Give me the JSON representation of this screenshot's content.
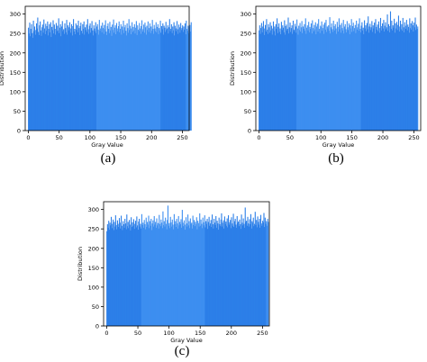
{
  "panels": [
    {
      "caption": "(a)",
      "chart_data": {
        "type": "bar",
        "xlabel": "Gray Value",
        "ylabel": "Distribution",
        "xlim": [
          -5,
          261
        ],
        "ylim": [
          0,
          320
        ],
        "xticks": [
          0,
          50,
          100,
          150,
          200,
          250
        ],
        "yticks": [
          0,
          50,
          100,
          150,
          200,
          250,
          300
        ],
        "bar_color": "#3d8ef0",
        "band_color": "#2c7fe8",
        "grid": false,
        "values": [
          265,
          250,
          278,
          243,
          262,
          274,
          251,
          239,
          283,
          256,
          268,
          247,
          259,
          276,
          263,
          291,
          254,
          246,
          271,
          281,
          258,
          244,
          266,
          273,
          252,
          286,
          263,
          248,
          275,
          257,
          269,
          281,
          245,
          262,
          274,
          253,
          279,
          241,
          267,
          259,
          284,
          250,
          273,
          262,
          247,
          277,
          256,
          270,
          258,
          289,
          251,
          265,
          274,
          243,
          268,
          282,
          256,
          261,
          249,
          276,
          264,
          253,
          285,
          247,
          271,
          258,
          266,
          279,
          252,
          263,
          274,
          245,
          269,
          287,
          255,
          262,
          248,
          276,
          259,
          271,
          253,
          283,
          264,
          246,
          269,
          278,
          257,
          250,
          274,
          262,
          281,
          247,
          266,
          259,
          273,
          254,
          287,
          261,
          249,
          270,
          276,
          252,
          264,
          282,
          258,
          245,
          271,
          263,
          256,
          279,
          251,
          268,
          274,
          260,
          247,
          285,
          257,
          263,
          270,
          253,
          278,
          264,
          249,
          272,
          261,
          284,
          255,
          246,
          269,
          276,
          262,
          251,
          280,
          258,
          267,
          244,
          273,
          259,
          286,
          252,
          265,
          271,
          248,
          277,
          263,
          256,
          269,
          281,
          253,
          262,
          274,
          247,
          268,
          259,
          283,
          251,
          266,
          272,
          257,
          245,
          276,
          264,
          252,
          287,
          259,
          270,
          248,
          263,
          279,
          254,
          267,
          258,
          274,
          250,
          265,
          282,
          246,
          271,
          260,
          256,
          277,
          263,
          249,
          269,
          284,
          255,
          261,
          273,
          252,
          278,
          266,
          247,
          270,
          259,
          281,
          254,
          264,
          276,
          251,
          268,
          257,
          285,
          262,
          249,
          272,
          263,
          256,
          279,
          253,
          267,
          274,
          248,
          264,
          258,
          283,
          252,
          269,
          261,
          276,
          247,
          270,
          265,
          254,
          280,
          259,
          263,
          271,
          250,
          266,
          287,
          256,
          262,
          274,
          251,
          268,
          258,
          279,
          245,
          270,
          263,
          256,
          282,
          261,
          249,
          273,
          266,
          252,
          277,
          259,
          264,
          271,
          254,
          268,
          260,
          276,
          248,
          283,
          262,
          257,
          270,
          251,
          266,
          272,
          255,
          279
        ],
        "bands": [
          [
            0,
            110
          ],
          [
            215,
            255
          ]
        ]
      }
    },
    {
      "caption": "(b)",
      "chart_data": {
        "type": "bar",
        "xlabel": "Gray Value",
        "ylabel": "Distribution",
        "xlim": [
          -5,
          261
        ],
        "ylim": [
          0,
          320
        ],
        "xticks": [
          0,
          50,
          100,
          150,
          200,
          250
        ],
        "yticks": [
          0,
          50,
          100,
          150,
          200,
          250,
          300
        ],
        "bar_color": "#3d8ef0",
        "band_color": "#2c7fe8",
        "grid": false,
        "values": [
          258,
          271,
          249,
          264,
          277,
          253,
          268,
          282,
          246,
          263,
          272,
          255,
          287,
          260,
          249,
          274,
          266,
          252,
          279,
          258,
          270,
          247,
          263,
          281,
          256,
          268,
          245,
          274,
          262,
          289,
          251,
          267,
          276,
          254,
          263,
          248,
          280,
          259,
          271,
          265,
          253,
          284,
          247,
          269,
          273,
          258,
          262,
          291,
          250,
          266,
          278,
          254,
          264,
          271,
          249,
          283,
          260,
          256,
          275,
          268,
          252,
          286,
          263,
          247,
          270,
          259,
          277,
          255,
          266,
          282,
          251,
          268,
          262,
          274,
          257,
          289,
          249,
          265,
          271,
          258,
          280,
          253,
          267,
          262,
          276,
          250,
          284,
          264,
          256,
          272,
          261,
          279,
          248,
          268,
          275,
          255,
          287,
          262,
          251,
          270,
          266,
          281,
          257,
          264,
          273,
          249,
          278,
          260,
          285,
          254,
          268,
          263,
          271,
          257,
          292,
          250,
          266,
          276,
          261,
          254,
          283,
          269,
          258,
          274,
          263,
          249,
          280,
          267,
          255,
          289,
          261,
          272,
          252,
          277,
          264,
          258,
          285,
          250,
          268,
          274,
          261,
          253,
          282,
          266,
          259,
          276,
          248,
          271,
          263,
          287,
          254,
          269,
          278,
          256,
          264,
          272,
          251,
          283,
          260,
          266,
          275,
          257,
          289,
          262,
          253,
          270,
          279,
          258,
          265,
          248,
          284,
          263,
          271,
          256,
          277,
          261,
          294,
          252,
          268,
          275,
          259,
          266,
          282,
          254,
          271,
          263,
          278,
          250,
          287,
          267,
          260,
          273,
          256,
          281,
          264,
          252,
          290,
          269,
          258,
          276,
          263,
          285,
          255,
          270,
          279,
          261,
          266,
          299,
          257,
          274,
          269,
          253,
          307,
          262,
          283,
          258,
          271,
          265,
          288,
          252,
          276,
          263,
          280,
          259,
          272,
          296,
          255,
          268,
          283,
          261,
          274,
          257,
          290,
          266,
          253,
          279,
          270,
          262,
          285,
          258,
          273,
          267,
          252,
          289,
          264,
          276,
          260,
          282,
          271,
          255,
          278,
          266,
          291,
          259,
          273,
          262,
          268
        ],
        "bands": [
          [
            0,
            60
          ],
          [
            165,
            255
          ]
        ]
      }
    },
    {
      "caption": "(c)",
      "chart_data": {
        "type": "bar",
        "xlabel": "Gray Value",
        "ylabel": "Distribution",
        "xlim": [
          -5,
          261
        ],
        "ylim": [
          0,
          320
        ],
        "xticks": [
          0,
          50,
          100,
          150,
          200,
          250
        ],
        "yticks": [
          0,
          50,
          100,
          150,
          200,
          250,
          300
        ],
        "bar_color": "#3d8ef0",
        "band_color": "#2c7fe8",
        "grid": false,
        "values": [
          244,
          262,
          253,
          271,
          248,
          266,
          259,
          281,
          252,
          263,
          274,
          247,
          268,
          256,
          285,
          260,
          249,
          272,
          263,
          255,
          278,
          251,
          266,
          284,
          258,
          247,
          270,
          262,
          253,
          276,
          264,
          249,
          287,
          257,
          268,
          252,
          273,
          261,
          246,
          280,
          255,
          267,
          258,
          275,
          250,
          263,
          271,
          254,
          282,
          259,
          248,
          269,
          276,
          256,
          263,
          251,
          288,
          260,
          266,
          253,
          273,
          262,
          249,
          279,
          255,
          268,
          261,
          284,
          252,
          270,
          258,
          276,
          247,
          264,
          272,
          256,
          283,
          261,
          268,
          253,
          277,
          259,
          265,
          251,
          286,
          263,
          257,
          274,
          266,
          252,
          295,
          260,
          270,
          256,
          279,
          263,
          249,
          273,
          310,
          258,
          265,
          252,
          281,
          267,
          256,
          274,
          261,
          249,
          288,
          262,
          270,
          255,
          276,
          264,
          251,
          283,
          259,
          268,
          262,
          275,
          253,
          299,
          266,
          257,
          272,
          261,
          248,
          280,
          264,
          256,
          287,
          259,
          270,
          252,
          277,
          263,
          266,
          251,
          284,
          260,
          273,
          257,
          268,
          262,
          280,
          249,
          271,
          265,
          256,
          290,
          258,
          274,
          263,
          252,
          279,
          267,
          259,
          285,
          254,
          270,
          263,
          276,
          250,
          268,
          281,
          258,
          264,
          273,
          255,
          287,
          262,
          251,
          276,
          266,
          260,
          283,
          253,
          271,
          264,
          248,
          279,
          262,
          257,
          274,
          290,
          256,
          266,
          272,
          251,
          282,
          263,
          269,
          258,
          277,
          254,
          285,
          261,
          267,
          273,
          252,
          280,
          264,
          258,
          289,
          255,
          270,
          276,
          261,
          253,
          283,
          265,
          269,
          257,
          274,
          262,
          250,
          287,
          266,
          259,
          277,
          263,
          253,
          305,
          268,
          271,
          258,
          281,
          264,
          256,
          275,
          262,
          288,
          251,
          270,
          266,
          279,
          257,
          263,
          294,
          260,
          273,
          254,
          282,
          268,
          261,
          276,
          253,
          286,
          264,
          258,
          271,
          267,
          291,
          255,
          279,
          263,
          270,
          258,
          276,
          268
        ],
        "bands": [
          [
            0,
            55
          ],
          [
            158,
            255
          ]
        ]
      }
    }
  ]
}
